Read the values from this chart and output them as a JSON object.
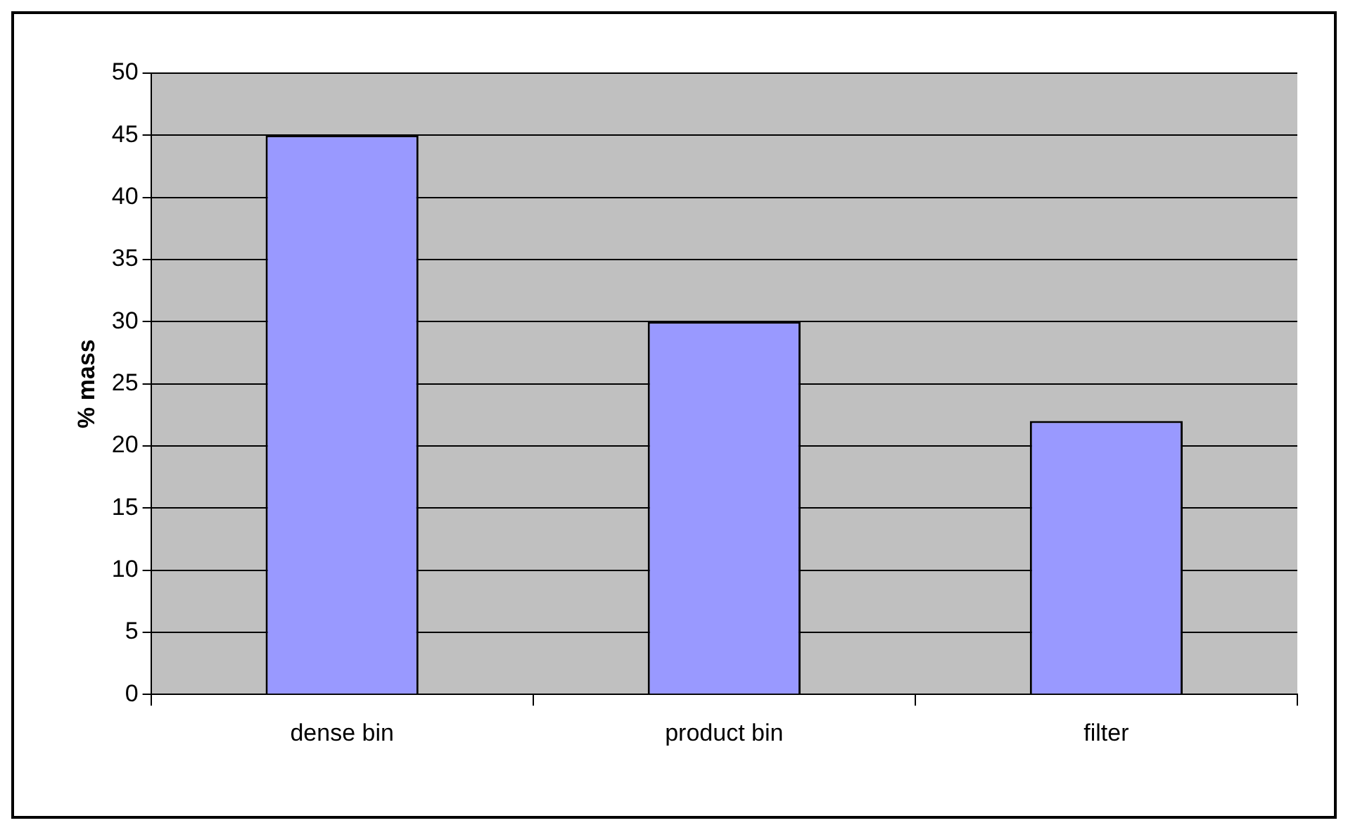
{
  "chart_data": {
    "type": "bar",
    "ylabel": "% mass",
    "categories": [
      "dense bin",
      "product bin",
      "filter"
    ],
    "values": [
      45,
      30,
      22
    ],
    "color": "#9999ff",
    "ylim": [
      0,
      50
    ],
    "yticks": [
      0,
      5,
      10,
      15,
      20,
      25,
      30,
      35,
      40,
      45,
      50
    ],
    "grid": "y",
    "legend": false
  }
}
